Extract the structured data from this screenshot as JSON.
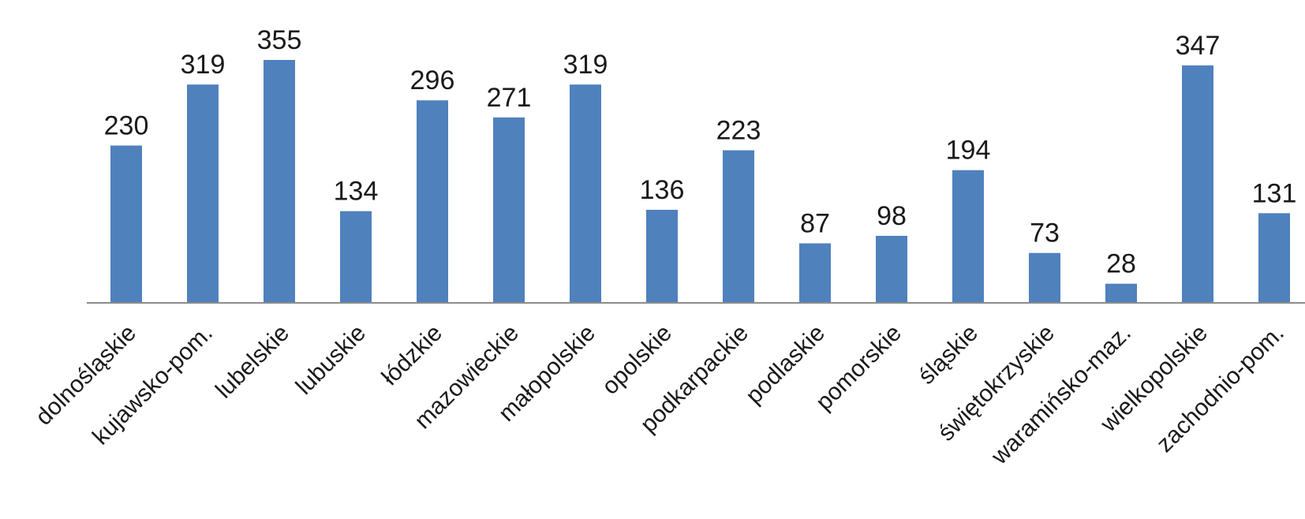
{
  "chart_data": {
    "type": "bar",
    "title": "",
    "xlabel": "",
    "ylabel": "",
    "grid": false,
    "legend": "none",
    "ylim": [
      0,
      355
    ],
    "bar_color": "#4f81bd",
    "axis_color": "#8c8c8c",
    "categories": [
      "dolnośląskie",
      "kujawsko-pom.",
      "lubelskie",
      "lubuskie",
      "łódzkie",
      "mazowieckie",
      "małopolskie",
      "opolskie",
      "podkarpackie",
      "podlaskie",
      "pomorskie",
      "śląskie",
      "świętokrzyskie",
      "waramińsko-maz.",
      "wielkopolskie",
      "zachodnio-pom."
    ],
    "values": [
      230,
      319,
      355,
      134,
      296,
      271,
      319,
      136,
      223,
      87,
      98,
      194,
      73,
      28,
      347,
      131
    ]
  }
}
